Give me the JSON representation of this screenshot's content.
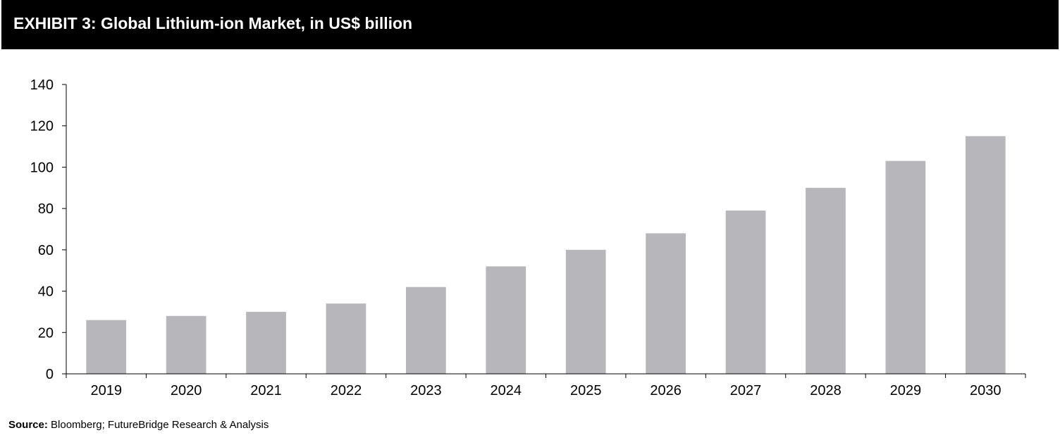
{
  "header": {
    "title": "EXHIBIT 3: Global Lithium-ion Market, in US$ billion"
  },
  "footer": {
    "source_label": "Source:",
    "source_text": "Bloomberg; FutureBridge Research & Analysis"
  },
  "colors": {
    "bar": "#b7b6ba",
    "axis": "#000000",
    "title_bg": "#000000",
    "title_fg": "#ffffff"
  },
  "chart_data": {
    "type": "bar",
    "title": "EXHIBIT 3: Global Lithium-ion Market, in US$ billion",
    "xlabel": "",
    "ylabel": "",
    "categories": [
      "2019",
      "2020",
      "2021",
      "2022",
      "2023",
      "2024",
      "2025",
      "2026",
      "2027",
      "2028",
      "2029",
      "2030"
    ],
    "values": [
      26,
      28,
      30,
      34,
      42,
      52,
      60,
      68,
      79,
      90,
      103,
      115
    ],
    "ylim": [
      0,
      140
    ],
    "yticks": [
      0,
      20,
      40,
      60,
      80,
      100,
      120,
      140
    ],
    "grid": false,
    "legend": "none"
  }
}
